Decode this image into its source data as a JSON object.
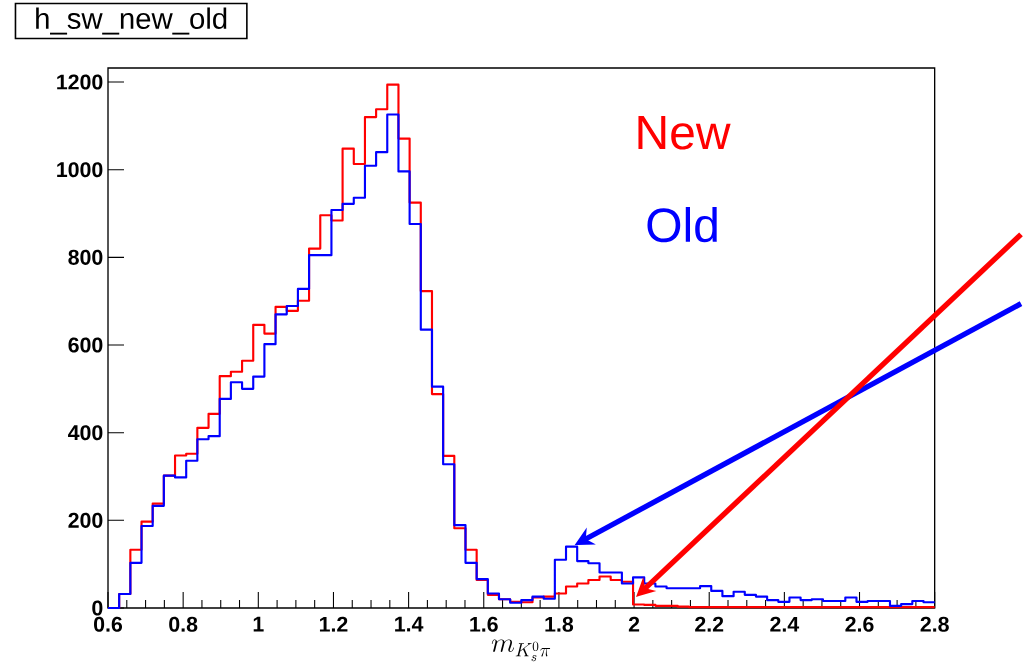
{
  "chart_data": {
    "type": "histogram",
    "title": "h_sw_new_old",
    "xlabel": "m_{K_{s}^{0}\\pi}",
    "bins": [
      0.6,
      0.6297,
      0.6595,
      0.6892,
      0.7189,
      0.7486,
      0.7784,
      0.8081,
      0.8378,
      0.8676,
      0.8973,
      0.927,
      0.9568,
      0.9865,
      1.0162,
      1.0459,
      1.0757,
      1.1054,
      1.1351,
      1.1649,
      1.1946,
      1.2243,
      1.2541,
      1.2838,
      1.3135,
      1.3432,
      1.373,
      1.4027,
      1.4324,
      1.4622,
      1.4919,
      1.5216,
      1.5514,
      1.5811,
      1.6108,
      1.6405,
      1.6703,
      1.7,
      1.7297,
      1.7595,
      1.7892,
      1.8189,
      1.8486,
      1.8784,
      1.9081,
      1.9378,
      1.9676,
      1.9973,
      2.027,
      2.0568,
      2.0865,
      2.1162,
      2.1459,
      2.1757,
      2.2054,
      2.2351,
      2.2649,
      2.2946,
      2.3243,
      2.3541,
      2.3838,
      2.4135,
      2.4432,
      2.473,
      2.5027,
      2.5324,
      2.5622,
      2.5919,
      2.6216,
      2.6514,
      2.6811,
      2.7108,
      2.7405,
      2.7703,
      2.8
    ],
    "series": [
      {
        "name": "New",
        "color": "#ff0000",
        "values": [
          0,
          32,
          133,
          197,
          238,
          302,
          348,
          352,
          411,
          443,
          529,
          539,
          564,
          646,
          626,
          687,
          678,
          701,
          820,
          896,
          884,
          1048,
          1013,
          1120,
          1138,
          1194,
          1071,
          925,
          723,
          488,
          347,
          182,
          133,
          64,
          30,
          20,
          14,
          13,
          24,
          26,
          33,
          49,
          56,
          64,
          72,
          64,
          60,
          8,
          7,
          5,
          5,
          3,
          2,
          2,
          2,
          2,
          2,
          2,
          2,
          2,
          2,
          2,
          2,
          2,
          2,
          2,
          2,
          2,
          2,
          2,
          2,
          2,
          2,
          2
        ]
      },
      {
        "name": "Old",
        "color": "#0000ff",
        "values": [
          0,
          32,
          103,
          187,
          233,
          302,
          298,
          336,
          385,
          392,
          477,
          515,
          500,
          528,
          602,
          670,
          689,
          728,
          805,
          805,
          908,
          922,
          936,
          1009,
          1040,
          1126,
          996,
          876,
          635,
          505,
          328,
          189,
          103,
          66,
          33,
          20,
          12,
          18,
          26,
          21,
          110,
          140,
          107,
          102,
          81,
          81,
          56,
          70,
          56,
          49,
          45,
          45,
          45,
          50,
          39,
          27,
          37,
          30,
          26,
          18,
          14,
          24,
          18,
          20,
          16,
          16,
          24,
          14,
          16,
          16,
          5,
          9,
          16,
          13
        ]
      }
    ],
    "xlim": [
      0.6,
      2.8
    ],
    "ylim": [
      0,
      1232
    ],
    "xticks": [
      0.6,
      0.8,
      1,
      1.2,
      1.4,
      1.6,
      1.8,
      2,
      2.2,
      2.4,
      2.6,
      2.8
    ],
    "yticks": [
      0,
      200,
      400,
      600,
      800,
      1000,
      1200
    ]
  }
}
